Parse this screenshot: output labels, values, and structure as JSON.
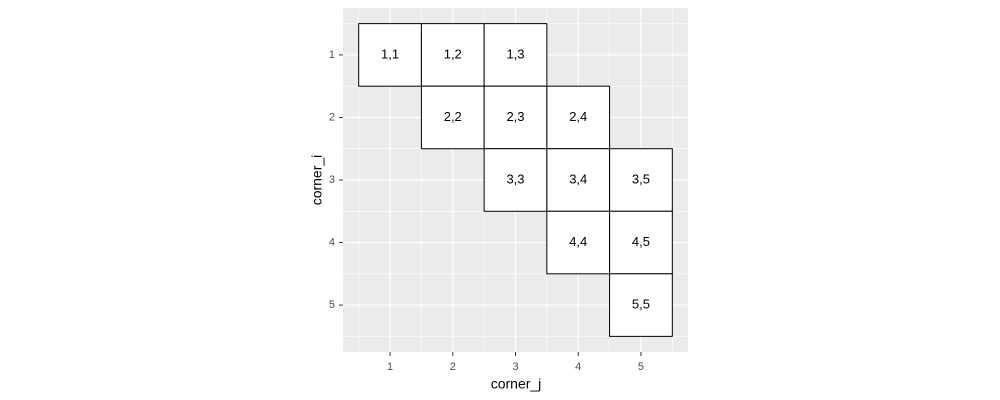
{
  "chart_data": {
    "type": "tile",
    "x_label": "corner_j",
    "y_label": "corner_i",
    "xlim": [
      0.25,
      5.75
    ],
    "ylim": [
      0.25,
      5.75
    ],
    "y_reversed": true,
    "xticks": [
      1,
      2,
      3,
      4,
      5
    ],
    "yticks": [
      1,
      2,
      3,
      4,
      5
    ],
    "x_minor_ticks": [
      0.5,
      1.5,
      2.5,
      3.5,
      4.5,
      5.5
    ],
    "y_minor_ticks": [
      0.5,
      1.5,
      2.5,
      3.5,
      4.5,
      5.5
    ],
    "grid": true,
    "panel_color": "#ebebeb",
    "tile_fill": "#ffffff",
    "tile_border": "#000000",
    "tiles": [
      {
        "x": 1,
        "y": 1,
        "label": "1,1"
      },
      {
        "x": 2,
        "y": 1,
        "label": "1,2"
      },
      {
        "x": 3,
        "y": 1,
        "label": "1,3"
      },
      {
        "x": 2,
        "y": 2,
        "label": "2,2"
      },
      {
        "x": 3,
        "y": 2,
        "label": "2,3"
      },
      {
        "x": 4,
        "y": 2,
        "label": "2,4"
      },
      {
        "x": 3,
        "y": 3,
        "label": "3,3"
      },
      {
        "x": 4,
        "y": 3,
        "label": "3,4"
      },
      {
        "x": 5,
        "y": 3,
        "label": "3,5"
      },
      {
        "x": 4,
        "y": 4,
        "label": "4,4"
      },
      {
        "x": 5,
        "y": 4,
        "label": "4,5"
      },
      {
        "x": 5,
        "y": 5,
        "label": "5,5"
      }
    ]
  }
}
